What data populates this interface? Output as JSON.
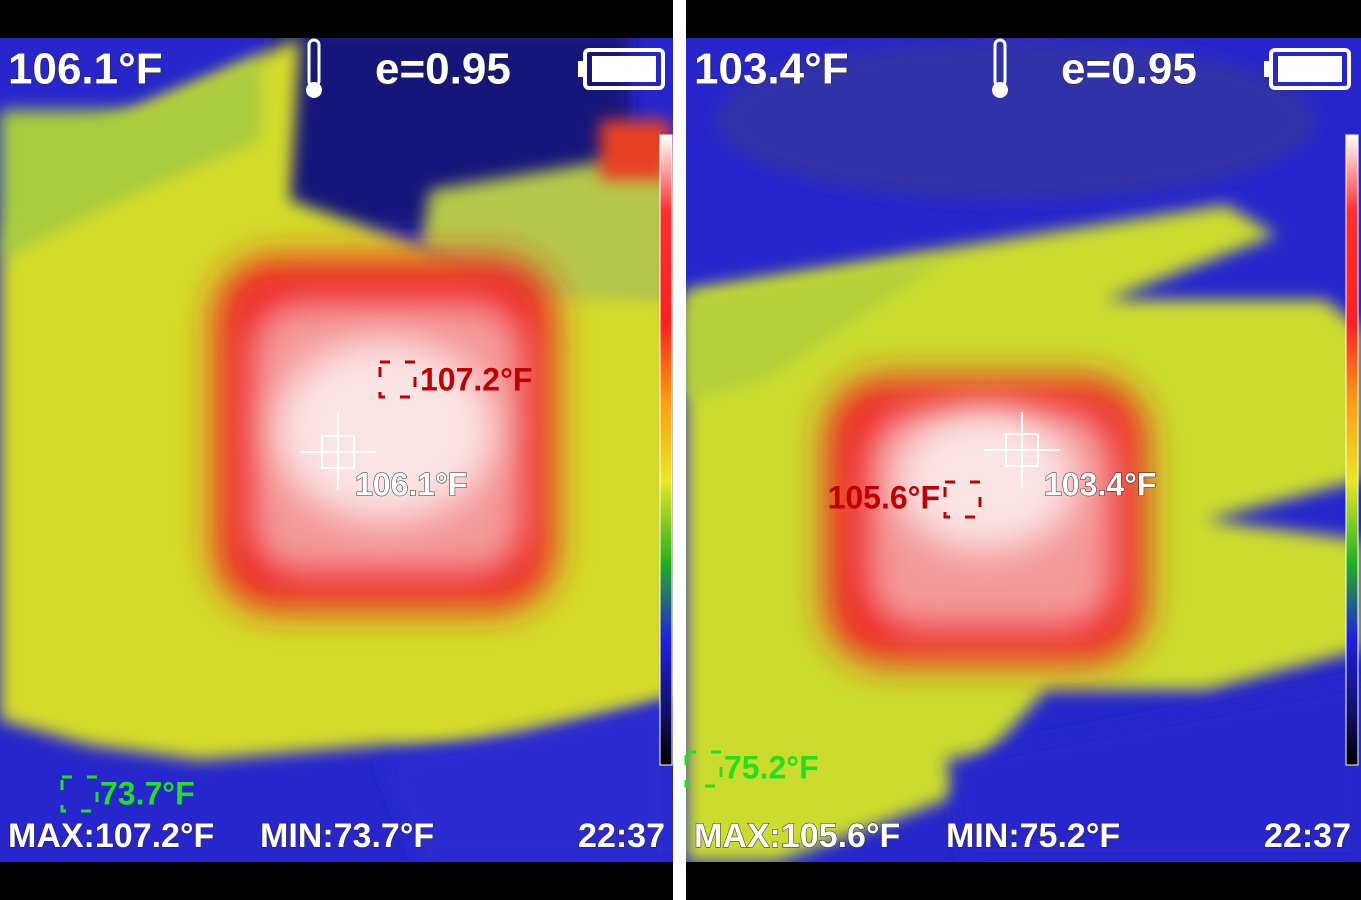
{
  "panels": [
    {
      "reading": "106.1°F",
      "emissivity": "e=0.95",
      "center_label": "106.1°F",
      "max_marker": "107.2°F",
      "min_marker": "73.7°F",
      "max": "MAX:107.2°F",
      "min": "MIN:73.7°F",
      "time": "22:37"
    },
    {
      "reading": "103.4°F",
      "emissivity": "e=0.95",
      "center_label": "103.4°F",
      "max_marker": "105.6°F",
      "min_marker": "75.2°F",
      "max": "MAX:105.6°F",
      "min": "MIN:75.2°F",
      "time": "22:37"
    }
  ]
}
